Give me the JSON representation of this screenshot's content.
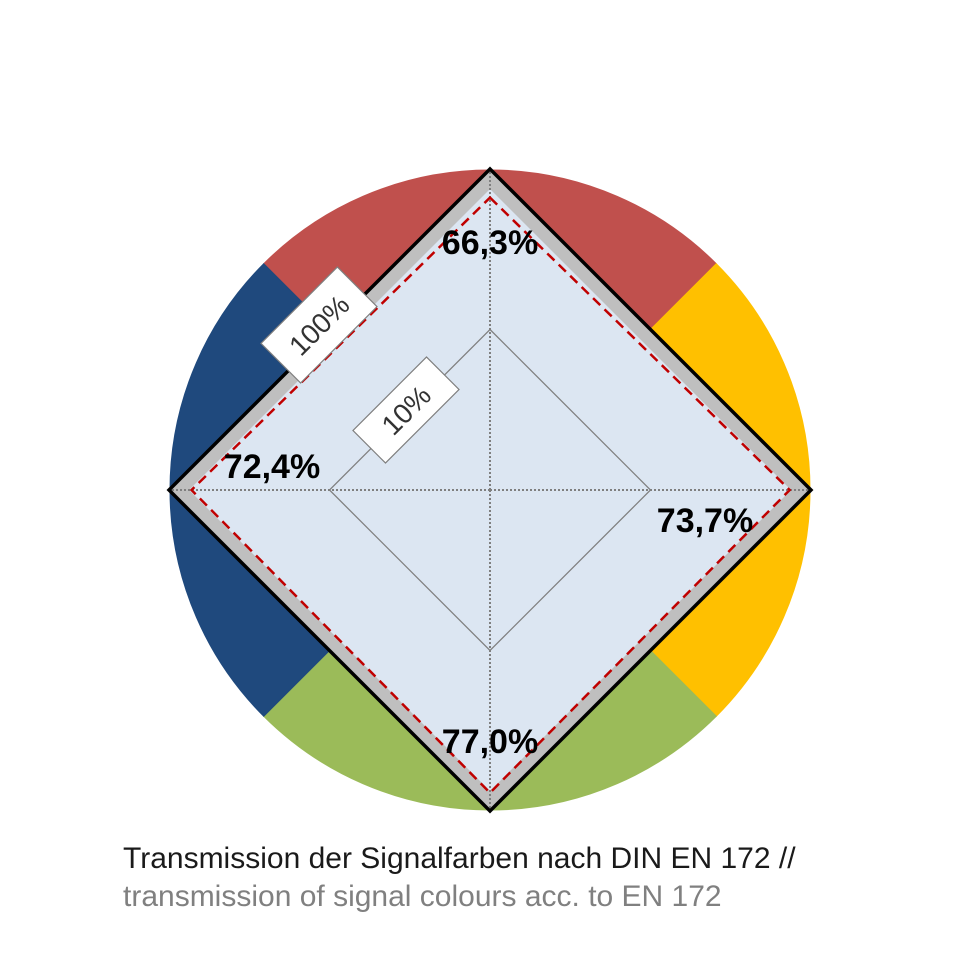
{
  "chart_data": {
    "type": "radar",
    "categories": [
      "rot / red",
      "gelb / yellow",
      "grün / green",
      "blau / blue"
    ],
    "values": [
      66.3,
      73.7,
      77.0,
      72.4
    ],
    "value_labels": [
      "66,3%",
      "73,7%",
      "77,0%",
      "72,4%"
    ],
    "scale": "log",
    "rlim": [
      1,
      100
    ],
    "rings": [
      {
        "value": 10,
        "label": "10%"
      },
      {
        "value": 100,
        "label": "100%"
      }
    ],
    "colors": {
      "red": "#c0504d",
      "yellow": "#ffc000",
      "green": "#9bbb59",
      "blue": "#1f497d",
      "fill": "#dce6f2",
      "band": "#bfbfbf",
      "dashed": "#c00000"
    },
    "grid": true
  },
  "caption": {
    "line1": "Transmission der Signalfarben nach DIN EN 172 //",
    "line2": "transmission of signal colours acc. to EN 172"
  }
}
